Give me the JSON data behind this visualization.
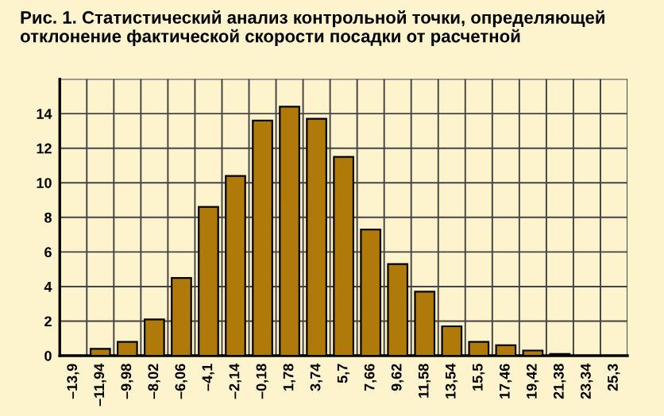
{
  "chart_data": {
    "type": "bar",
    "title": "Рис. 1. Статистический анализ контрольной точки, определяющей\nотклонение фактической скорости посадки от расчетной",
    "categories": [
      "–13,9",
      "–11,94",
      "–9,98",
      "–8,02",
      "–6,06",
      "–4,1",
      "–2,14",
      "–0,18",
      "1,78",
      "3,74",
      "5,7",
      "7,66",
      "9,62",
      "11,58",
      "13,54",
      "15,5",
      "17,46",
      "19,42",
      "21,38",
      "23,34",
      "25,3"
    ],
    "values": [
      0,
      0.4,
      0.8,
      2.1,
      4.5,
      8.6,
      10.4,
      13.6,
      14.4,
      13.7,
      11.5,
      7.3,
      5.3,
      3.7,
      1.7,
      0.8,
      0.6,
      0.3,
      0.1,
      0,
      0
    ],
    "color": "#b07a0a",
    "ylim": [
      0,
      16
    ],
    "yticks": [
      0,
      2,
      4,
      6,
      8,
      10,
      12,
      14,
      {
        "value": 16,
        "label": null
      }
    ],
    "grid": true
  }
}
